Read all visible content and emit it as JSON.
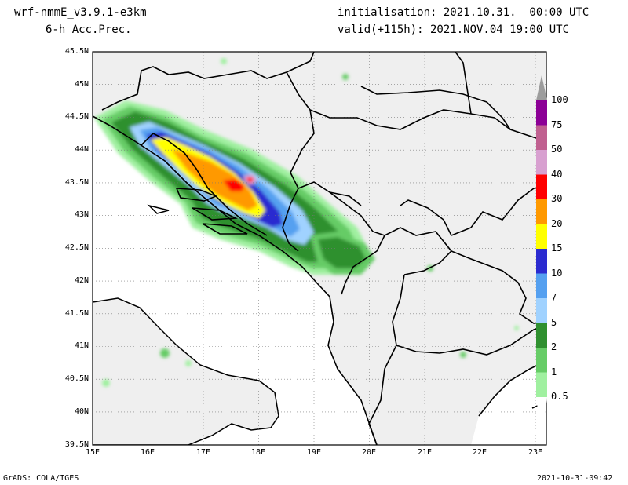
{
  "header": {
    "model": "wrf-nmmE_v3.9.1-e3km",
    "field": "6-h Acc.Prec.",
    "init": "initialisation: 2021.10.31.  00:00 UTC",
    "valid": "valid(+115h): 2021.NOV.04 19:00 UTC"
  },
  "map": {
    "lat_labels": [
      "45.5N",
      "45N",
      "44.5N",
      "44N",
      "43.5N",
      "43N",
      "42.5N",
      "42N",
      "41.5N",
      "41N",
      "40.5N",
      "40N",
      "39.5N"
    ],
    "lon_labels": [
      "15E",
      "16E",
      "17E",
      "18E",
      "19E",
      "20E",
      "21E",
      "22E",
      "23E"
    ],
    "lat_range": [
      39.5,
      45.5
    ],
    "lon_range": [
      15,
      23.2
    ],
    "land_color": "#efefef",
    "max_center": {
      "lat": 43.5,
      "lon": 17.5
    }
  },
  "legend": {
    "levels": [
      {
        "label": "100",
        "color": "#9c9c9c"
      },
      {
        "label": "75",
        "color": "#8c0096"
      },
      {
        "label": "50",
        "color": "#c06090"
      },
      {
        "label": "40",
        "color": "#d8a0d0"
      },
      {
        "label": "30",
        "color": "#ff0000"
      },
      {
        "label": "20",
        "color": "#ff9900"
      },
      {
        "label": "15",
        "color": "#ffff00"
      },
      {
        "label": "10",
        "color": "#2b2bd0"
      },
      {
        "label": "7",
        "color": "#55a0f0"
      },
      {
        "label": "5",
        "color": "#a0d2ff"
      },
      {
        "label": "2",
        "color": "#2f902f"
      },
      {
        "label": "1",
        "color": "#66cc66"
      },
      {
        "label": "0.5",
        "color": "#a0f0a0"
      }
    ]
  },
  "footer": {
    "left": "GrADS: COLA/IGES",
    "right": "2021-10-31-09:42"
  }
}
